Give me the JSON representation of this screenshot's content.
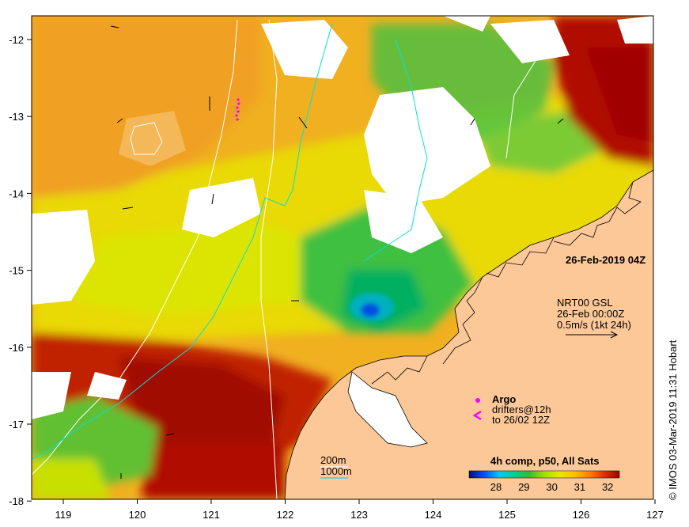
{
  "map": {
    "date_label": "26-Feb-2019 04Z",
    "credit": "IMOS 03-Mar-2019 11:31 Hobart",
    "copyright_symbol": "©",
    "axes": {
      "x_ticks": [
        "119",
        "120",
        "121",
        "122",
        "123",
        "124",
        "125",
        "126",
        "127"
      ],
      "y_ticks": [
        "-12",
        "-13",
        "-14",
        "-15",
        "-16",
        "-17",
        "-18"
      ]
    },
    "currents_legend": {
      "line1": "NRT00 GSL",
      "line2": "26-Feb 00:00Z",
      "line3": "0.5m/s (1kt 24h)"
    },
    "argo_legend": {
      "argo_label": "Argo",
      "drifters_line1": "drifters@12h",
      "drifters_line2": "to 26/02 12Z"
    },
    "isobath_legend": {
      "label_200m": "200m",
      "label_1000m": "1000m",
      "color_200m": "#ffffff",
      "color_1000m": "#00e0e0"
    },
    "colorbar": {
      "title": "4h comp, p50, All Sats",
      "ticks": [
        "28",
        "29",
        "30",
        "31",
        "32"
      ],
      "colors": [
        "#0a0a8c",
        "#0050ff",
        "#00c8ff",
        "#00d090",
        "#30c030",
        "#a0e000",
        "#e8e800",
        "#ffc000",
        "#ff8000",
        "#e03000",
        "#a00000"
      ]
    },
    "colors": {
      "land": "#fcc898",
      "cloud": "#ffffff",
      "argo": "#ff00ff"
    }
  }
}
